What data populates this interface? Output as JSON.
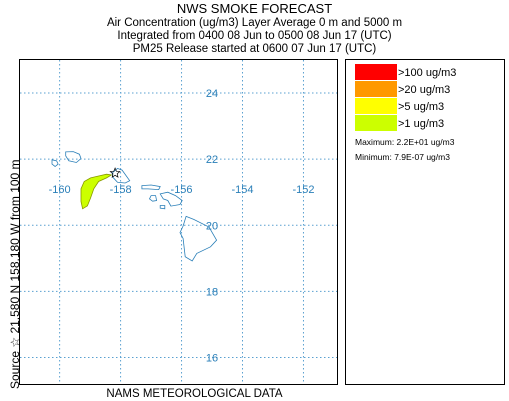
{
  "header": {
    "title": "NWS SMOKE FORECAST",
    "line1": "Air Concentration (ug/m3) Layer Average    0 m and  5000 m",
    "line2": "Integrated from 0400 08 Jun to 0500 08 Jun 17 (UTC)",
    "line3": "PM25 Release started at 0600 07 Jun 17 (UTC)"
  },
  "side_label": "Source ☆  21.580  N  158.180  W     from  100 m",
  "footer": "NAMS METEOROLOGICAL DATA",
  "legend": {
    "items": [
      {
        "label": ">100 ug/m3",
        "color": "#ff0000"
      },
      {
        "label": ">20 ug/m3",
        "color": "#ff9900"
      },
      {
        "label": ">5 ug/m3",
        "color": "#ffff00"
      },
      {
        "label": ">1 ug/m3",
        "color": "#ccff00"
      }
    ],
    "maximum": "Maximum: 2.2E+01 ug/m3",
    "minimum": "Minimum: 7.9E-07 ug/m3"
  },
  "colors": {
    "grid": "#5aa0d0",
    "coast": "#2a7fb8",
    "plume": "#ccff00",
    "frame": "#000000"
  },
  "chart_data": {
    "type": "heatmap",
    "title": "NWS SMOKE FORECAST",
    "xlabel": "",
    "ylabel": "",
    "x_ticks": [
      -160,
      -158,
      -156,
      -154,
      -152
    ],
    "y_ticks": [
      16,
      18,
      20,
      22,
      24
    ],
    "xlim": [
      -161.3,
      -150.9
    ],
    "ylim": [
      15.2,
      25.0
    ],
    "grid": true,
    "source": {
      "lat": 21.58,
      "lon": -158.18,
      "height_m": 100
    },
    "contours": [
      {
        "level": ">1 ug/m3",
        "color": "#ccff00",
        "lon_range": [
          -159.35,
          -158.3
        ],
        "lat_range": [
          20.5,
          21.6
        ]
      }
    ]
  }
}
